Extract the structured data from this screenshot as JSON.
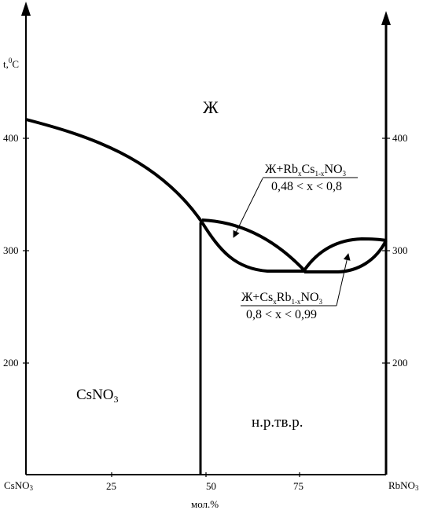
{
  "left_axis": {
    "unit_label": "t,",
    "unit_sup": "0",
    "unit_c": "C",
    "ticks": [
      "400",
      "300",
      "200"
    ]
  },
  "right_axis": {
    "ticks": [
      "400",
      "300",
      "200"
    ]
  },
  "x_axis": {
    "left_end": {
      "main": "CsNO",
      "sub": "3"
    },
    "right_end": {
      "main": "RbNO",
      "sub": "3"
    },
    "ticks": [
      "25",
      "50",
      "75"
    ],
    "title": "мол.%"
  },
  "regions": {
    "liquid": "Ж",
    "csno3": {
      "main": "CsNO",
      "sub": "3"
    },
    "solid_solution": "н.р.тв.р."
  },
  "annotations": {
    "upper": {
      "formula": {
        "p1": "Ж+Rb",
        "s1": "x",
        "p2": "Cs",
        "s2": "1-x",
        "p3": "NO",
        "s3": "3"
      },
      "range": "0,48 < x < 0,8"
    },
    "lower": {
      "formula": {
        "p1": "Ж+Cs",
        "s1": "x",
        "p2": "Rb",
        "s2": "1-x",
        "p3": "NO",
        "s3": "3"
      },
      "range": "0,8 < x < 0,99"
    }
  },
  "chart_data": {
    "type": "phase-diagram",
    "x_range": [
      0,
      100
    ],
    "y_ticks": [
      200,
      300,
      400
    ],
    "x_ticks": [
      25,
      50,
      75
    ],
    "liquidus_csno3": [
      [
        0,
        416
      ],
      [
        10,
        407
      ],
      [
        20,
        392
      ],
      [
        30,
        372
      ],
      [
        40,
        346
      ],
      [
        47,
        327
      ]
    ],
    "peritectic_temperature": 327,
    "peritectic_composition": 47,
    "minimum": {
      "x": 76,
      "t": 282
    },
    "rbno3_melting": 310
  }
}
